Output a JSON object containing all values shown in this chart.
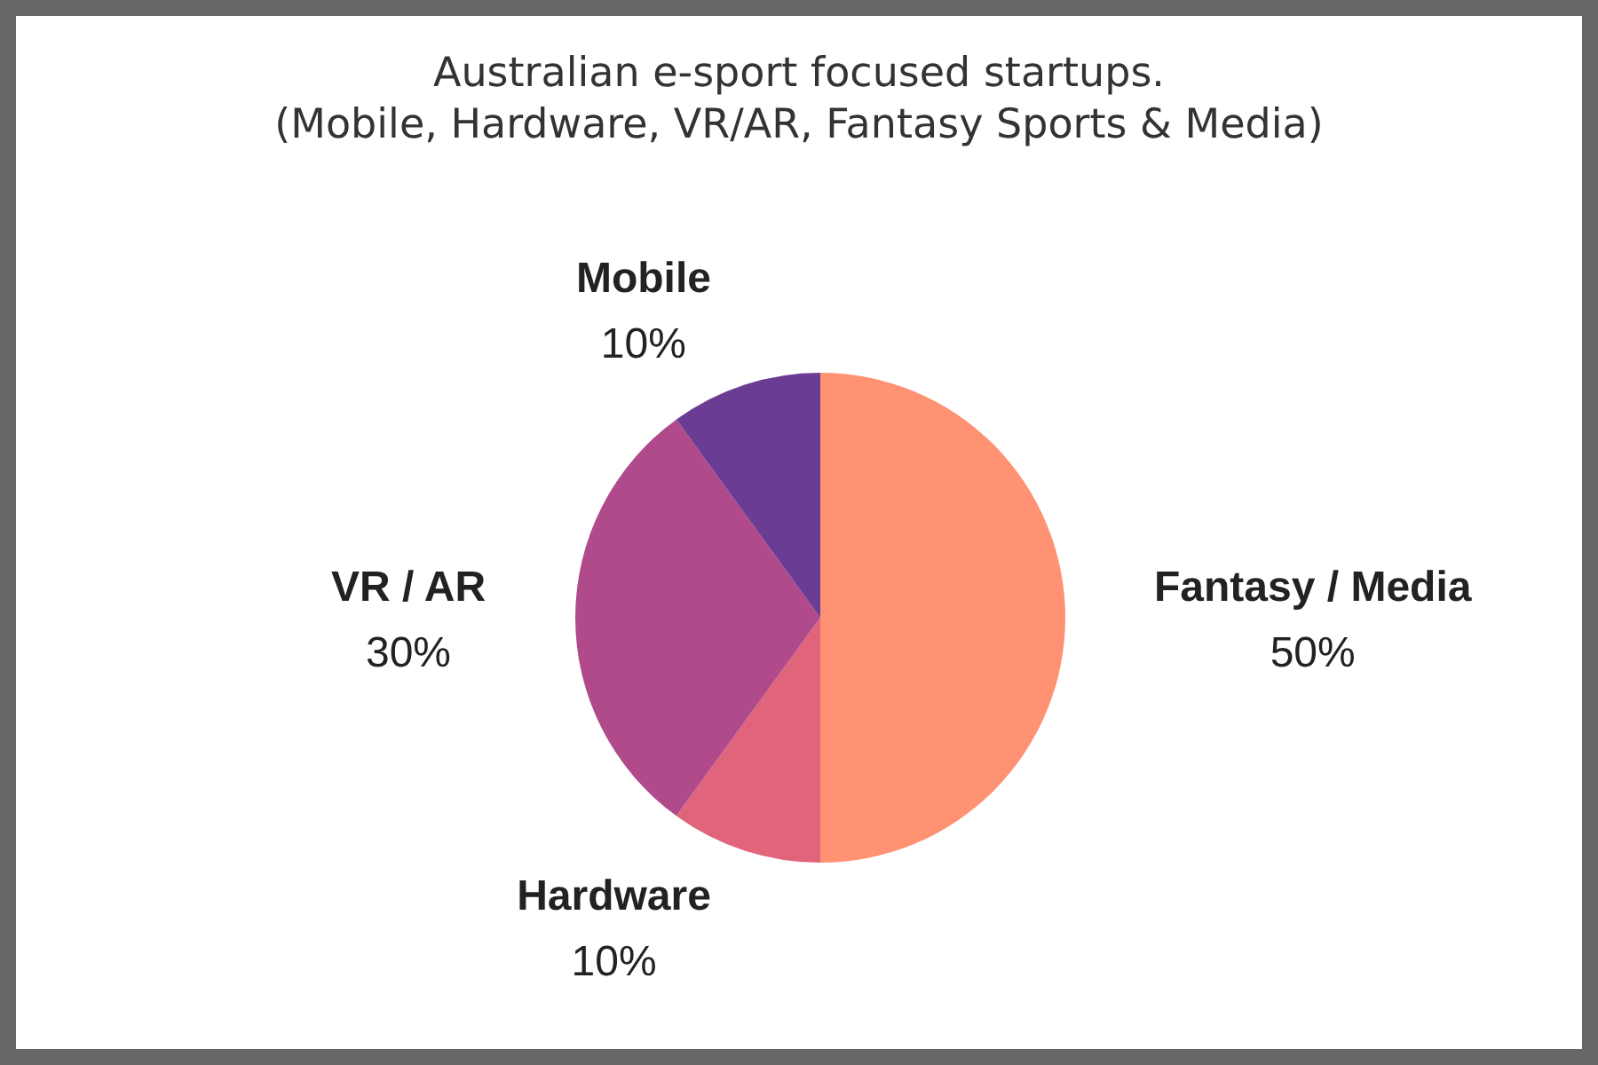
{
  "chart_data": {
    "type": "pie",
    "title": "Australian e-sport focused startups.",
    "subtitle": "(Mobile, Hardware, VR/AR, Fantasy Sports & Media)",
    "categories": [
      "Fantasy / Media",
      "Hardware",
      "VR / AR",
      "Mobile"
    ],
    "values": [
      50,
      10,
      30,
      10
    ],
    "colors": [
      "#fe9273",
      "#e0647a",
      "#b04a8b",
      "#6b3c93"
    ],
    "value_labels": [
      "50%",
      "10%",
      "30%",
      "10%"
    ],
    "legend": false
  }
}
